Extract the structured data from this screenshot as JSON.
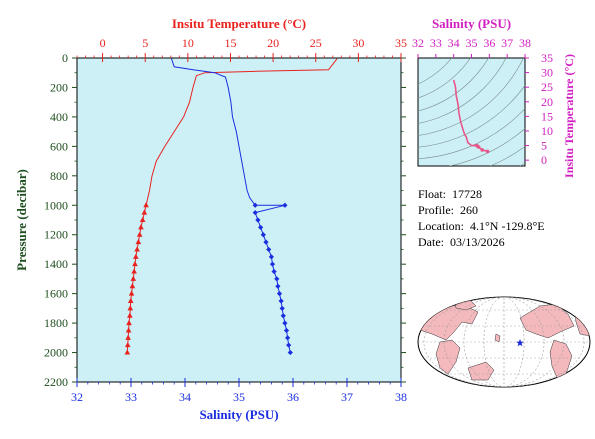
{
  "info": {
    "float_label": "Float:",
    "float_value": "17728",
    "profile_label": "Profile:",
    "profile_value": "260",
    "location_label": "Location:",
    "location_value": "4.1°N  -129.8°E",
    "date_label": "Date:",
    "date_value": "03/13/2026"
  },
  "colors": {
    "temperature": "#e8221f",
    "salinity": "#1a2ee0",
    "axis_text": "#1f4f1f",
    "inset_axis": "#d21fc2",
    "inset_trace": "#e8568a",
    "plot_bg": "#cdf0f7",
    "map_land": "#f4b9bd"
  },
  "chart_data": [
    {
      "type": "line",
      "x_top": {
        "label": "Insitu Temperature (°C)",
        "range": [
          -3,
          35
        ],
        "ticks": [
          0,
          5,
          10,
          15,
          20,
          25,
          30,
          35
        ]
      },
      "x_bottom": {
        "label": "Salinity (PSU)",
        "range": [
          32,
          38
        ],
        "ticks": [
          32,
          33,
          34,
          35,
          36,
          37,
          38
        ]
      },
      "y": {
        "label": "Pressure (decibar)",
        "range": [
          0,
          2200
        ],
        "inverted": true,
        "ticks": [
          0,
          200,
          400,
          600,
          800,
          1000,
          1200,
          1400,
          1600,
          1800,
          2000,
          2200
        ]
      },
      "series": [
        {
          "axis": "top",
          "line": [
            [
              27.5,
              5
            ],
            [
              26.5,
              80
            ],
            [
              18,
              90
            ],
            [
              12,
              100
            ],
            [
              11,
              120
            ],
            [
              10.6,
              200
            ],
            [
              10.2,
              300
            ],
            [
              9.5,
              400
            ],
            [
              8.4,
              500
            ],
            [
              7.3,
              600
            ],
            [
              6.3,
              700
            ],
            [
              5.8,
              800
            ],
            [
              5.5,
              900
            ],
            [
              5.1,
              1000
            ]
          ],
          "markers": [
            [
              5.1,
              1000
            ],
            [
              4.9,
              1050
            ],
            [
              4.7,
              1100
            ],
            [
              4.5,
              1150
            ],
            [
              4.35,
              1200
            ],
            [
              4.2,
              1250
            ],
            [
              4.05,
              1300
            ],
            [
              3.9,
              1350
            ],
            [
              3.8,
              1400
            ],
            [
              3.7,
              1450
            ],
            [
              3.6,
              1500
            ],
            [
              3.5,
              1550
            ],
            [
              3.4,
              1600
            ],
            [
              3.3,
              1650
            ],
            [
              3.25,
              1700
            ],
            [
              3.2,
              1750
            ],
            [
              3.1,
              1800
            ],
            [
              3.05,
              1850
            ],
            [
              3.0,
              1900
            ],
            [
              2.95,
              1950
            ],
            [
              2.9,
              2000
            ]
          ]
        },
        {
          "axis": "bottom",
          "line": [
            [
              33.75,
              5
            ],
            [
              33.8,
              60
            ],
            [
              34.15,
              80
            ],
            [
              34.55,
              100
            ],
            [
              34.75,
              130
            ],
            [
              34.8,
              200
            ],
            [
              34.85,
              300
            ],
            [
              34.88,
              400
            ],
            [
              34.95,
              500
            ],
            [
              35.0,
              600
            ],
            [
              35.05,
              700
            ],
            [
              35.1,
              800
            ],
            [
              35.15,
              900
            ],
            [
              35.2,
              950
            ],
            [
              35.3,
              1000
            ]
          ],
          "markers": [
            [
              35.3,
              1000
            ],
            [
              35.85,
              1000
            ],
            [
              35.3,
              1050
            ],
            [
              35.35,
              1100
            ],
            [
              35.4,
              1150
            ],
            [
              35.45,
              1200
            ],
            [
              35.5,
              1250
            ],
            [
              35.55,
              1300
            ],
            [
              35.6,
              1350
            ],
            [
              35.62,
              1400
            ],
            [
              35.65,
              1450
            ],
            [
              35.7,
              1500
            ],
            [
              35.72,
              1550
            ],
            [
              35.75,
              1600
            ],
            [
              35.78,
              1650
            ],
            [
              35.8,
              1700
            ],
            [
              35.82,
              1750
            ],
            [
              35.85,
              1800
            ],
            [
              35.88,
              1850
            ],
            [
              35.9,
              1900
            ],
            [
              35.92,
              1950
            ],
            [
              35.95,
              2000
            ]
          ]
        }
      ]
    },
    {
      "type": "line",
      "x": {
        "label": "Salinity (PSU)",
        "range": [
          32,
          38
        ],
        "ticks": [
          32,
          33,
          34,
          35,
          36,
          37,
          38
        ]
      },
      "y": {
        "label": "Insitu Temperature (°C)",
        "range": [
          -2,
          35
        ],
        "ticks": [
          0,
          5,
          10,
          15,
          20,
          25,
          30,
          35
        ]
      },
      "series": [
        {
          "points": [
            [
              34.0,
              27.5
            ],
            [
              34.1,
              25
            ],
            [
              34.15,
              22
            ],
            [
              34.25,
              19
            ],
            [
              34.3,
              16
            ],
            [
              34.4,
              13
            ],
            [
              34.5,
              11
            ],
            [
              34.55,
              10
            ],
            [
              34.6,
              9
            ],
            [
              34.7,
              8
            ],
            [
              34.75,
              7
            ],
            [
              34.8,
              6
            ],
            [
              34.9,
              5.5
            ],
            [
              35.0,
              5
            ],
            [
              35.3,
              5
            ],
            [
              35.4,
              4.5
            ],
            [
              35.6,
              3.5
            ],
            [
              35.9,
              3
            ]
          ]
        }
      ]
    }
  ]
}
